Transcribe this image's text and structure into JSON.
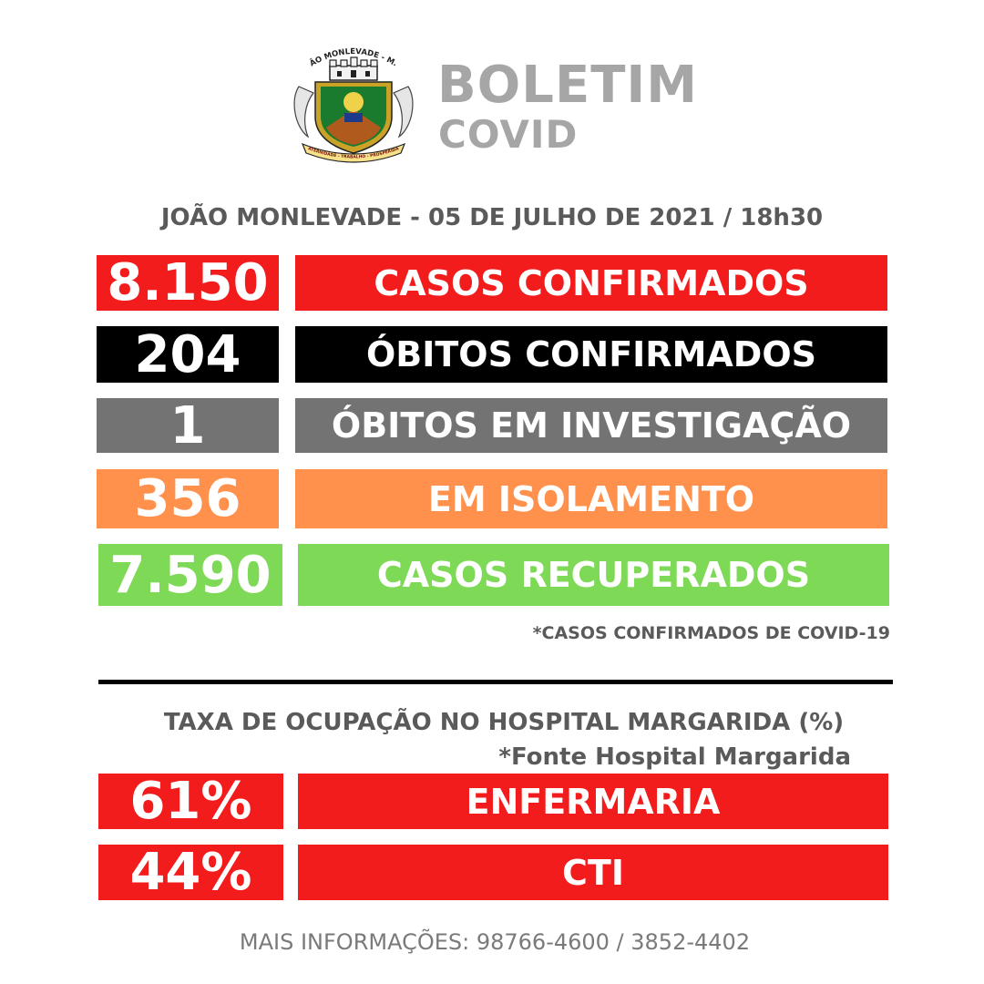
{
  "header": {
    "crest_text": "JOÃO MONLEVADE - M.G.",
    "crest_motto": "FRATERNIDADE - TRABALHO - PROSPERIDADE",
    "title": "BOLETIM",
    "subtitle": "COVID"
  },
  "dateline": "JOÃO MONLEVADE -  05 DE JULHO DE 2021 / 18h30",
  "stats": [
    {
      "value": "8.150",
      "label": "CASOS CONFIRMADOS",
      "color": "#f21c1c"
    },
    {
      "value": "204",
      "label": "ÓBITOS CONFIRMADOS",
      "color": "#000000"
    },
    {
      "value": "1",
      "label": "ÓBITOS EM INVESTIGAÇÃO",
      "color": "#737373"
    },
    {
      "value": "356",
      "label": "EM ISOLAMENTO",
      "color": "#ff914d"
    },
    {
      "value": "7.590",
      "label": "CASOS RECUPERADOS",
      "color": "#7ed957"
    }
  ],
  "footnote": "*CASOS CONFIRMADOS DE COVID-19",
  "hospital": {
    "title": "TAXA DE OCUPAÇÃO NO HOSPITAL MARGARIDA (%)",
    "source": "*Fonte Hospital Margarida",
    "rows": [
      {
        "value": "61%",
        "label": "ENFERMARIA",
        "color": "#f21c1c"
      },
      {
        "value": "44%",
        "label": "CTI",
        "color": "#f21c1c"
      }
    ]
  },
  "contact": "MAIS INFORMAÇÕES: 98766-4600  /  3852-4402"
}
